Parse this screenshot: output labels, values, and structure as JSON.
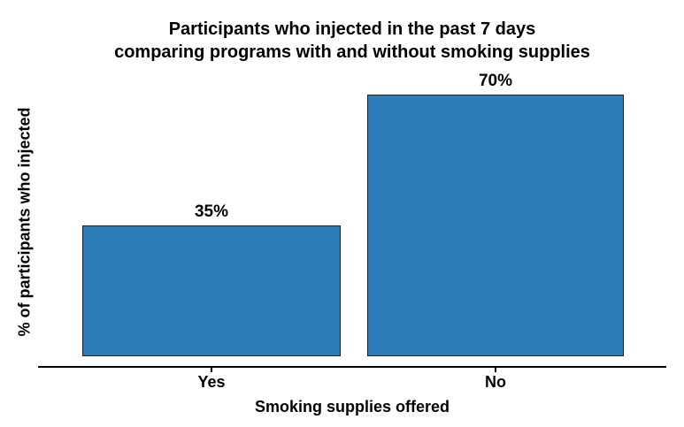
{
  "chart_data": {
    "type": "bar",
    "title": "Participants who injected in the past 7 days comparing programs with and without smoking supplies",
    "title_lines": [
      "Participants who injected in the past 7 days",
      "comparing programs with and without smoking supplies"
    ],
    "categories": [
      "Yes",
      "No"
    ],
    "values": [
      35,
      70
    ],
    "value_labels": [
      "35%",
      "70%"
    ],
    "xlabel": "Smoking supplies offered",
    "ylabel": "% of participants who injected",
    "ylim": [
      0,
      75
    ],
    "grid": false,
    "legend_position": "none",
    "bar_color": "#2d7cb8",
    "bar_edge_color": "#1c2228",
    "axis_color": "#000000",
    "text_color": "#000000",
    "background_color": "#ffffff"
  }
}
